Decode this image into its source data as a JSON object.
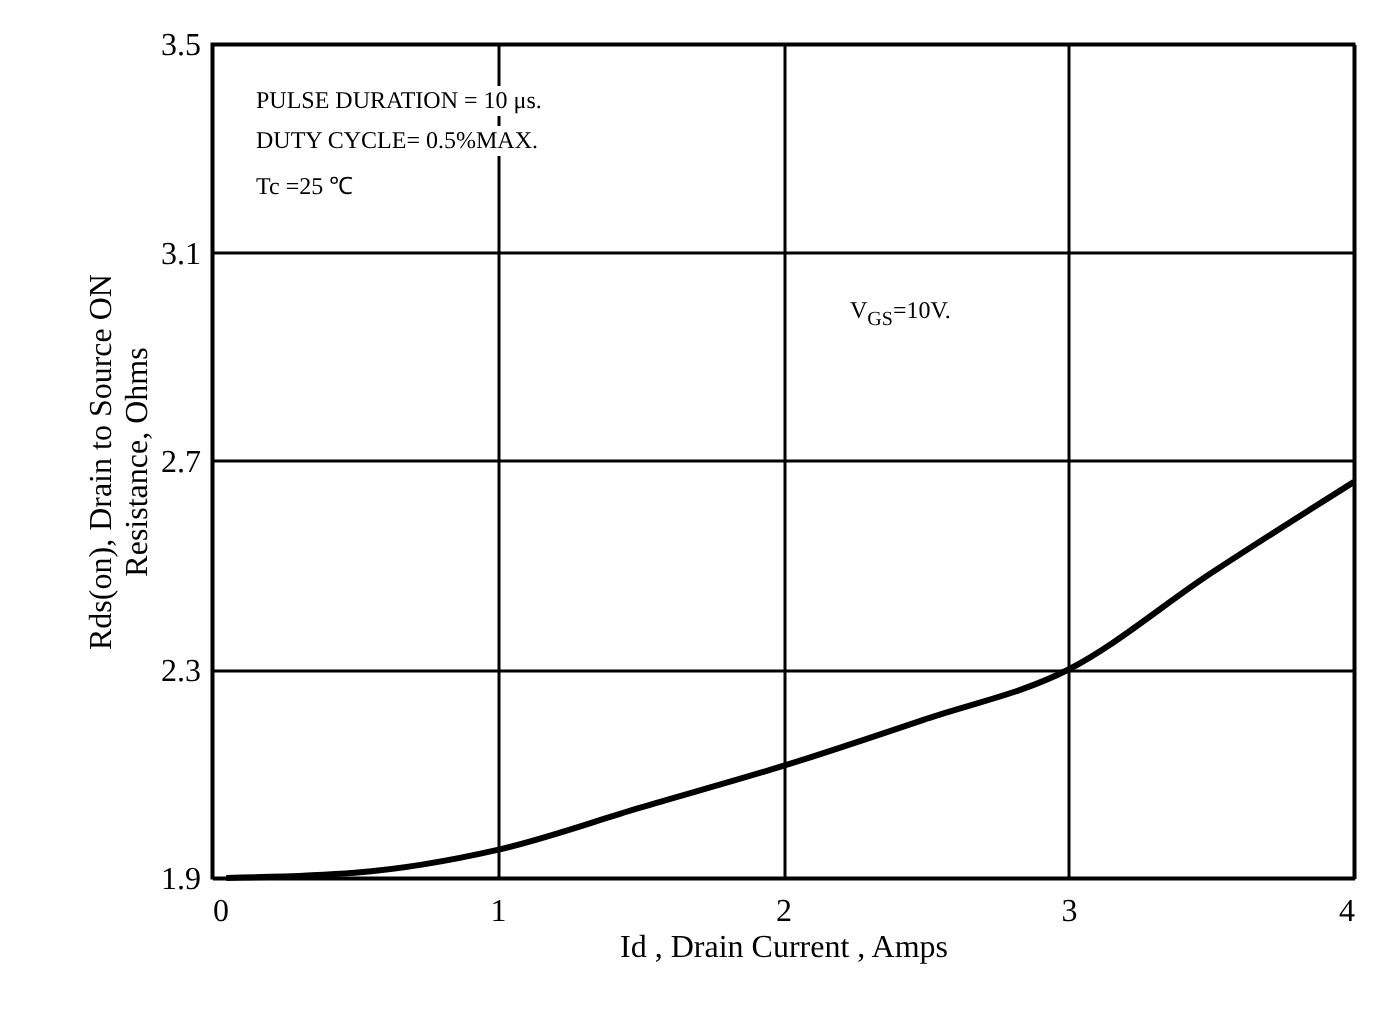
{
  "chart_data": {
    "type": "line",
    "xlabel": "Id , Drain Current , Amps",
    "ylabel": "Rds(on), Drain to Source ON\nResistance, Ohms",
    "x": [
      0.05,
      0.5,
      1,
      1.5,
      2,
      2.5,
      3,
      3.5,
      4
    ],
    "series": [
      {
        "color": "#000000",
        "values": [
          1.9,
          1.91,
          1.954,
          2.035,
          2.115,
          2.205,
          2.3,
          2.485,
          2.66
        ]
      }
    ],
    "xlim": [
      0,
      4
    ],
    "xticks": [
      0,
      1,
      2,
      3,
      4
    ],
    "ylim": [
      1.9,
      3.5
    ],
    "yticks": [
      1.9,
      2.3,
      2.7,
      3.1,
      3.5
    ],
    "grid": true,
    "line_style": "solid",
    "marker": "none",
    "annotations": [
      "PULSE    DURATION = 10 μs.",
      "DUTY    CYCLE= 0.5%MAX.",
      "Tc =25 ℃",
      "V$_{GS}$=10V."
    ]
  }
}
